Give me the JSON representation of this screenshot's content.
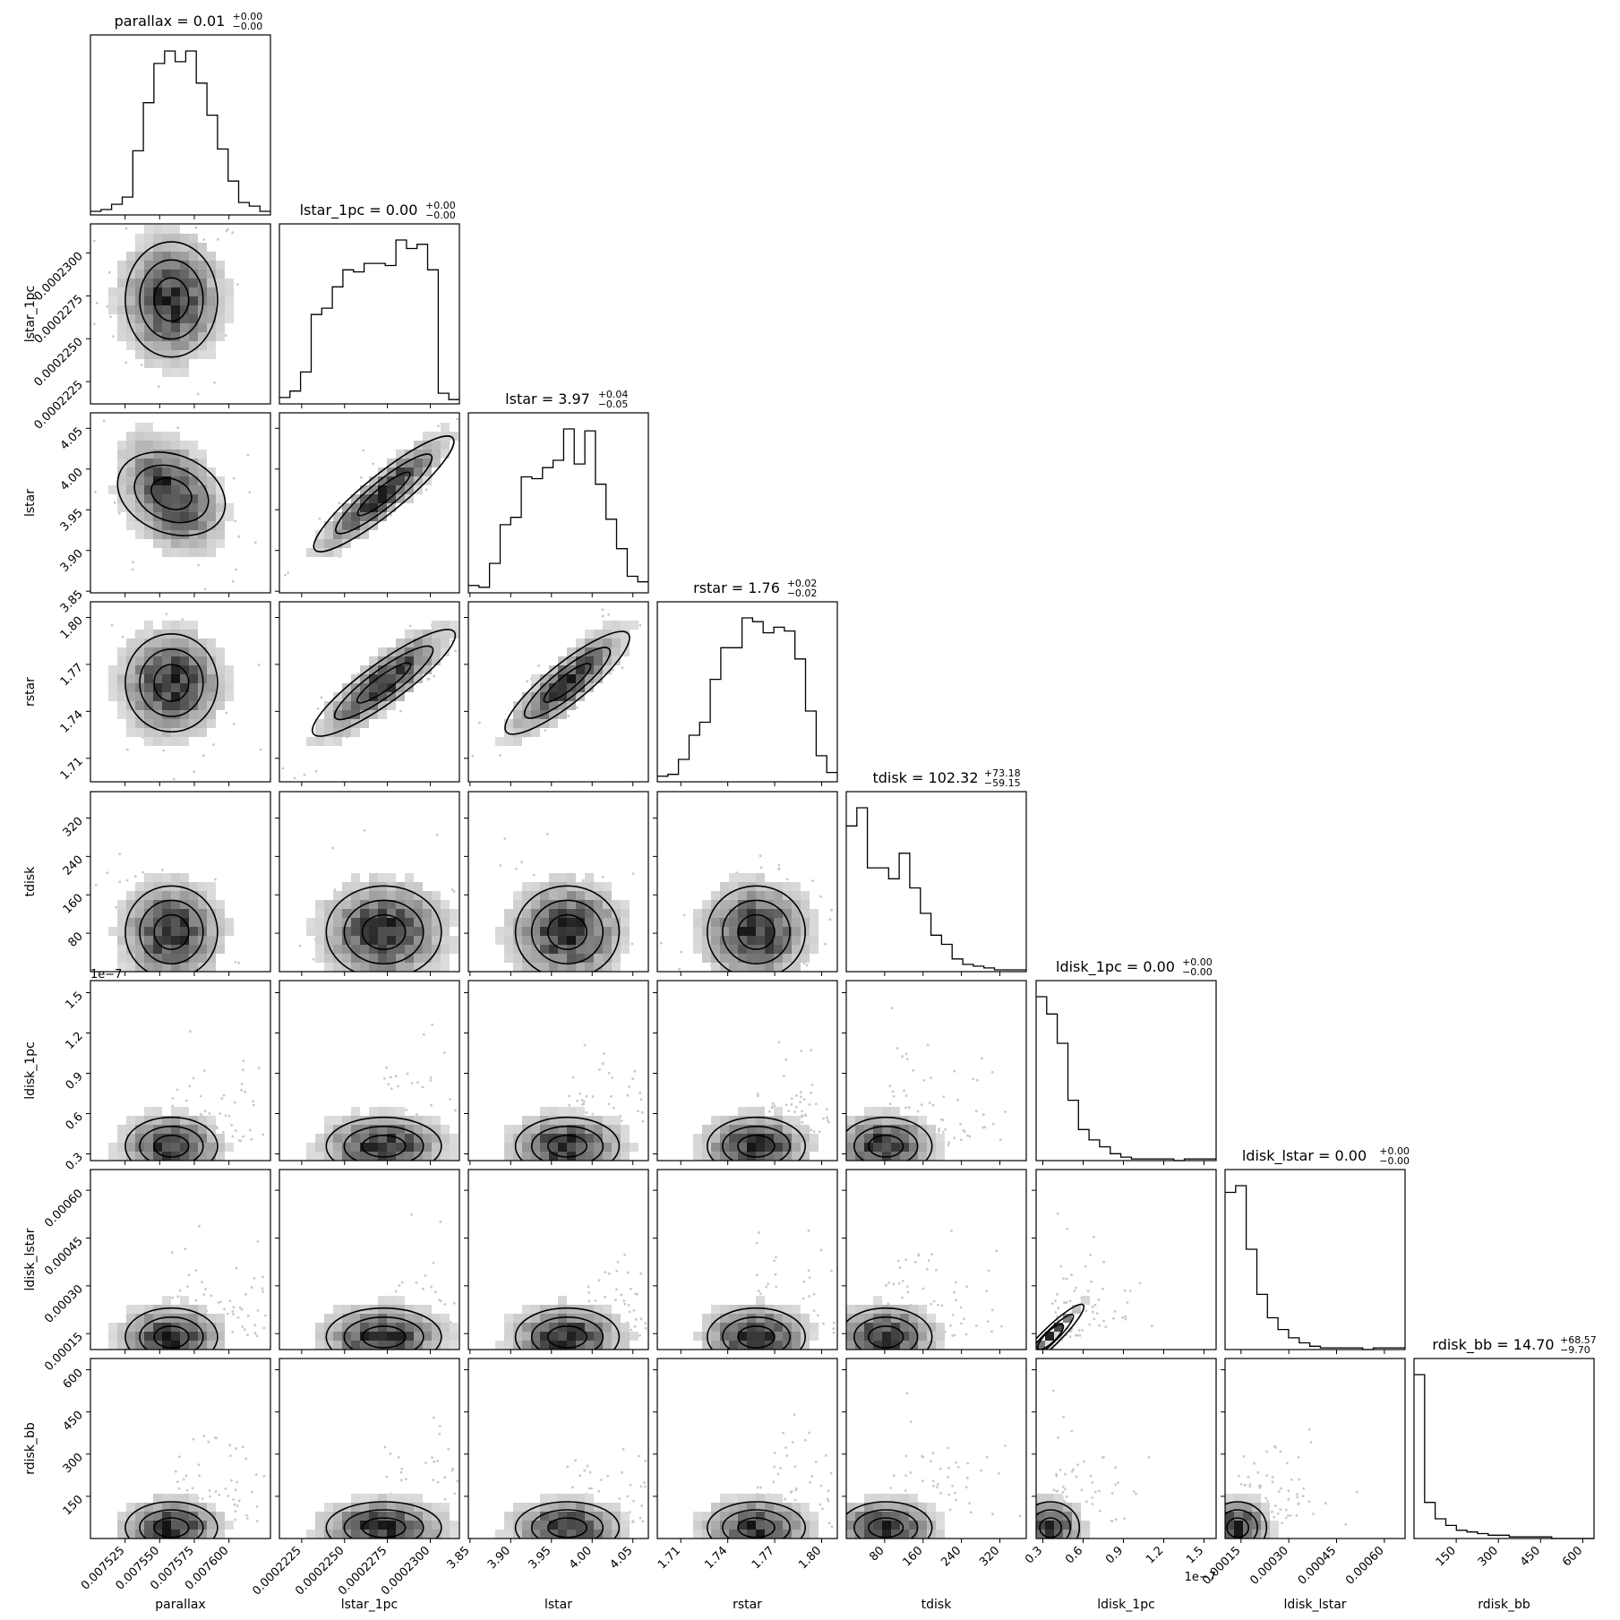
{
  "chart_data": {
    "type": "corner",
    "params": [
      "parallax",
      "lstar_1pc",
      "lstar",
      "rstar",
      "tdisk",
      "ldisk_1pc",
      "ldisk_lstar",
      "rdisk_bb"
    ],
    "titles": [
      {
        "name": "parallax",
        "value": "0.01",
        "plus": "+0.00",
        "minus": "−0.00"
      },
      {
        "name": "lstar_1pc",
        "value": "0.00",
        "plus": "+0.00",
        "minus": "−0.00"
      },
      {
        "name": "lstar",
        "value": "3.97",
        "plus": "+0.04",
        "minus": "−0.05"
      },
      {
        "name": "rstar",
        "value": "1.76",
        "plus": "+0.02",
        "minus": "−0.02"
      },
      {
        "name": "tdisk",
        "value": "102.32",
        "plus": "+73.18",
        "minus": "−59.15"
      },
      {
        "name": "ldisk_1pc",
        "value": "0.00",
        "plus": "+0.00",
        "minus": "−0.00"
      },
      {
        "name": "ldisk_lstar",
        "value": "0.00",
        "plus": "+0.00",
        "minus": "−0.00"
      },
      {
        "name": "rdisk_bb",
        "value": "14.70",
        "plus": "+68.57",
        "minus": "−9.70"
      }
    ],
    "axes": [
      {
        "name": "parallax",
        "range": [
          0.0075,
          0.00763
        ],
        "ticks": [
          0.007525,
          0.00755,
          0.007575,
          0.0076
        ],
        "ticklabels": [
          "0.007525",
          "0.007550",
          "0.007575",
          "0.007600"
        ]
      },
      {
        "name": "lstar_1pc",
        "range": [
          0.0002212,
          0.0002317
        ],
        "ticks": [
          0.0002225,
          0.000225,
          0.0002275,
          0.00023
        ],
        "ticklabels": [
          "0.0002225",
          "0.0002250",
          "0.0002275",
          "0.0002300"
        ]
      },
      {
        "name": "lstar",
        "range": [
          3.848,
          4.069
        ],
        "ticks": [
          3.85,
          3.9,
          3.95,
          4.0,
          4.05
        ],
        "ticklabels": [
          "3.85",
          "3.90",
          "3.95",
          "4.00",
          "4.05"
        ]
      },
      {
        "name": "rstar",
        "range": [
          1.695,
          1.81
        ],
        "ticks": [
          1.71,
          1.74,
          1.77,
          1.8
        ],
        "ticklabels": [
          "1.71",
          "1.74",
          "1.77",
          "1.80"
        ]
      },
      {
        "name": "tdisk",
        "range": [
          0,
          375
        ],
        "ticks": [
          80,
          160,
          240,
          320
        ],
        "ticklabels": [
          "80",
          "160",
          "240",
          "320"
        ]
      },
      {
        "name": "ldisk_1pc",
        "range": [
          0.25,
          1.59
        ],
        "ticks": [
          0.3,
          0.6,
          0.9,
          1.2,
          1.5
        ],
        "ticklabels": [
          "0.3",
          "0.6",
          "0.9",
          "1.2",
          "1.5"
        ],
        "offset": "1e−7"
      },
      {
        "name": "ldisk_lstar",
        "range": [
          0.0001,
          0.000665
        ],
        "ticks": [
          0.00015,
          0.0003,
          0.00045,
          0.0006
        ],
        "ticklabels": [
          "0.00015",
          "0.00030",
          "0.00045",
          "0.00060"
        ]
      },
      {
        "name": "rdisk_bb",
        "range": [
          0,
          640
        ],
        "ticks": [
          150,
          300,
          450,
          600
        ],
        "ticklabels": [
          "150",
          "300",
          "450",
          "600"
        ]
      }
    ],
    "histograms": [
      [
        2,
        3,
        6,
        10,
        36,
        63,
        85,
        92,
        86,
        92,
        74,
        56,
        37,
        19,
        7,
        5,
        2
      ],
      [
        3,
        6,
        15,
        42,
        45,
        55,
        63,
        62,
        66,
        66,
        65,
        77,
        73,
        75,
        63,
        5,
        2
      ],
      [
        4,
        3,
        16,
        37,
        41,
        63,
        62,
        68,
        72,
        89,
        70,
        88,
        59,
        40,
        24,
        9,
        6
      ],
      [
        3,
        4,
        12,
        25,
        32,
        55,
        72,
        72,
        88,
        86,
        80,
        83,
        81,
        66,
        38,
        14,
        5
      ],
      [
        80,
        90,
        57,
        57,
        51,
        65,
        46,
        32,
        20,
        15,
        7,
        4,
        3,
        2,
        1,
        1,
        1
      ],
      [
        95,
        85,
        68,
        35,
        18,
        12,
        8,
        4,
        2,
        1,
        1,
        1,
        1,
        0,
        1,
        1,
        1
      ],
      [
        94,
        98,
        60,
        33,
        19,
        12,
        7,
        4,
        2,
        1,
        1,
        1,
        1,
        0,
        1,
        1,
        1
      ],
      [
        100,
        22,
        12,
        8,
        5,
        4,
        3,
        2,
        2,
        1,
        1,
        1,
        1,
        0,
        0,
        0,
        0
      ]
    ],
    "grid": false
  }
}
